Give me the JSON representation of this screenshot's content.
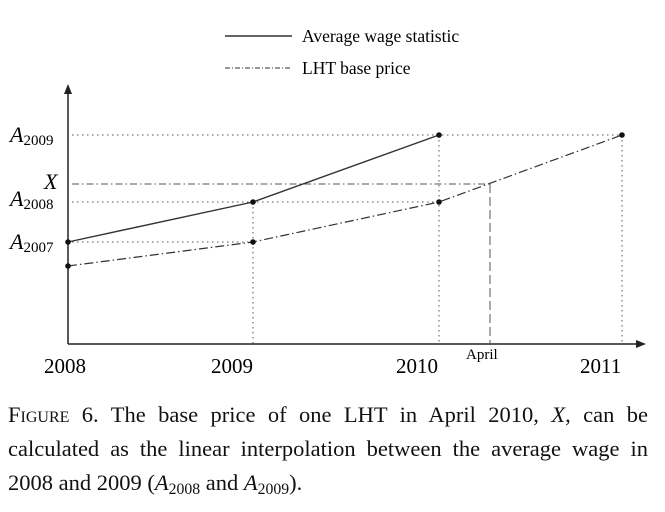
{
  "chart_data": {
    "type": "line",
    "x": [
      "2008",
      "2009",
      "2010",
      "2011"
    ],
    "xticks": [
      "2008",
      "2009",
      "2010",
      "2011"
    ],
    "annotation_april": "April",
    "legend": [
      "Average wage statistic",
      "LHT base price"
    ],
    "legend_placement": "top-center",
    "series": [
      {
        "name": "Average wage statistic",
        "style": "solid",
        "points": [
          {
            "x": "2008",
            "y": "A2007"
          },
          {
            "x": "2009",
            "y": "A2008"
          },
          {
            "x": "2010",
            "y": "A2009"
          }
        ]
      },
      {
        "name": "LHT base price",
        "style": "dash-dot",
        "points": [
          {
            "x": "2008",
            "y": "below A2007"
          },
          {
            "x": "2009",
            "y": "A2007"
          },
          {
            "x": "2010",
            "y": "A2008"
          },
          {
            "x": "2011",
            "y": "A2009"
          }
        ]
      }
    ],
    "ylabels": [
      {
        "base": "A",
        "sub": "2009"
      },
      {
        "base": "X",
        "sub": ""
      },
      {
        "base": "A",
        "sub": "2008"
      },
      {
        "base": "A",
        "sub": "2007"
      }
    ],
    "grid": false,
    "colors": {
      "line": "#333333",
      "guide": "#555555"
    }
  },
  "caption": {
    "label": "Figure 6.",
    "p1": " The base price of one LHT in April 2010, ",
    "x": "X",
    "p2": ", can be calculated as the linear interpolation between the average wage in 2008 and 2009 (",
    "a1": "A",
    "s1": "2008",
    "and": " and ",
    "a2": "A",
    "s2": "2009",
    "end": ")."
  }
}
